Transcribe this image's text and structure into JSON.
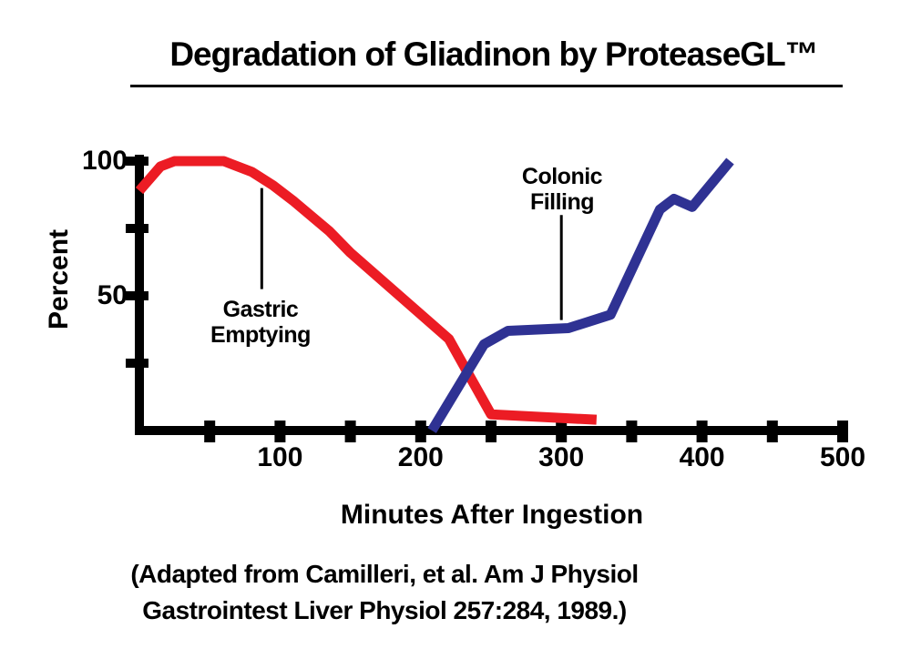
{
  "page": {
    "title": "Degradation of Gliadinon by ProteaseGL™",
    "background_color": "#ffffff",
    "text_color": "#000000"
  },
  "chart_data": {
    "type": "line",
    "title": "Degradation of Gliadinon by ProteaseGL™",
    "xlabel": "Minutes After Ingestion",
    "ylabel": "Percent",
    "xlim": [
      0,
      500
    ],
    "ylim": [
      0,
      100
    ],
    "grid": false,
    "legend_position": "none (inline text annotations with pointer lines)",
    "x_tick_step": 50,
    "x_tick_labels": [
      100,
      200,
      300,
      400,
      500
    ],
    "y_tick_values": [
      25,
      50,
      75,
      100
    ],
    "y_tick_labels": [
      100,
      50
    ],
    "axis_color": "#000000",
    "series": [
      {
        "name": "Gastric Emptying",
        "color": "#EC1C24",
        "x": [
          0,
          15,
          25,
          60,
          80,
          95,
          110,
          135,
          150,
          220,
          235,
          250,
          325
        ],
        "y": [
          89,
          98,
          100,
          100,
          96,
          91,
          85,
          74,
          66,
          34,
          20,
          6,
          4
        ]
      },
      {
        "name": "Colonic Filling",
        "color": "#2F3293",
        "x": [
          208,
          245,
          262,
          305,
          335,
          370,
          380,
          393,
          420
        ],
        "y": [
          0,
          32,
          37,
          38,
          43,
          82,
          86,
          83,
          100
        ]
      }
    ],
    "annotations": [
      {
        "label_lines": [
          "Gastric",
          "Emptying"
        ],
        "line_x": 87,
        "line_y_top": 90,
        "line_y_bottom": 52.5,
        "label_position": "below pointer line"
      },
      {
        "label_lines": [
          "Colonic",
          "Filling"
        ],
        "line_x": 300,
        "line_y_top": 80,
        "line_y_bottom": 41,
        "label_position": "above pointer line"
      }
    ]
  },
  "footer": {
    "citation_line1": "(Adapted from Camilleri, et al. Am J Physiol",
    "citation_line2": "Gastrointest Liver Physiol 257:284, 1989.)"
  }
}
